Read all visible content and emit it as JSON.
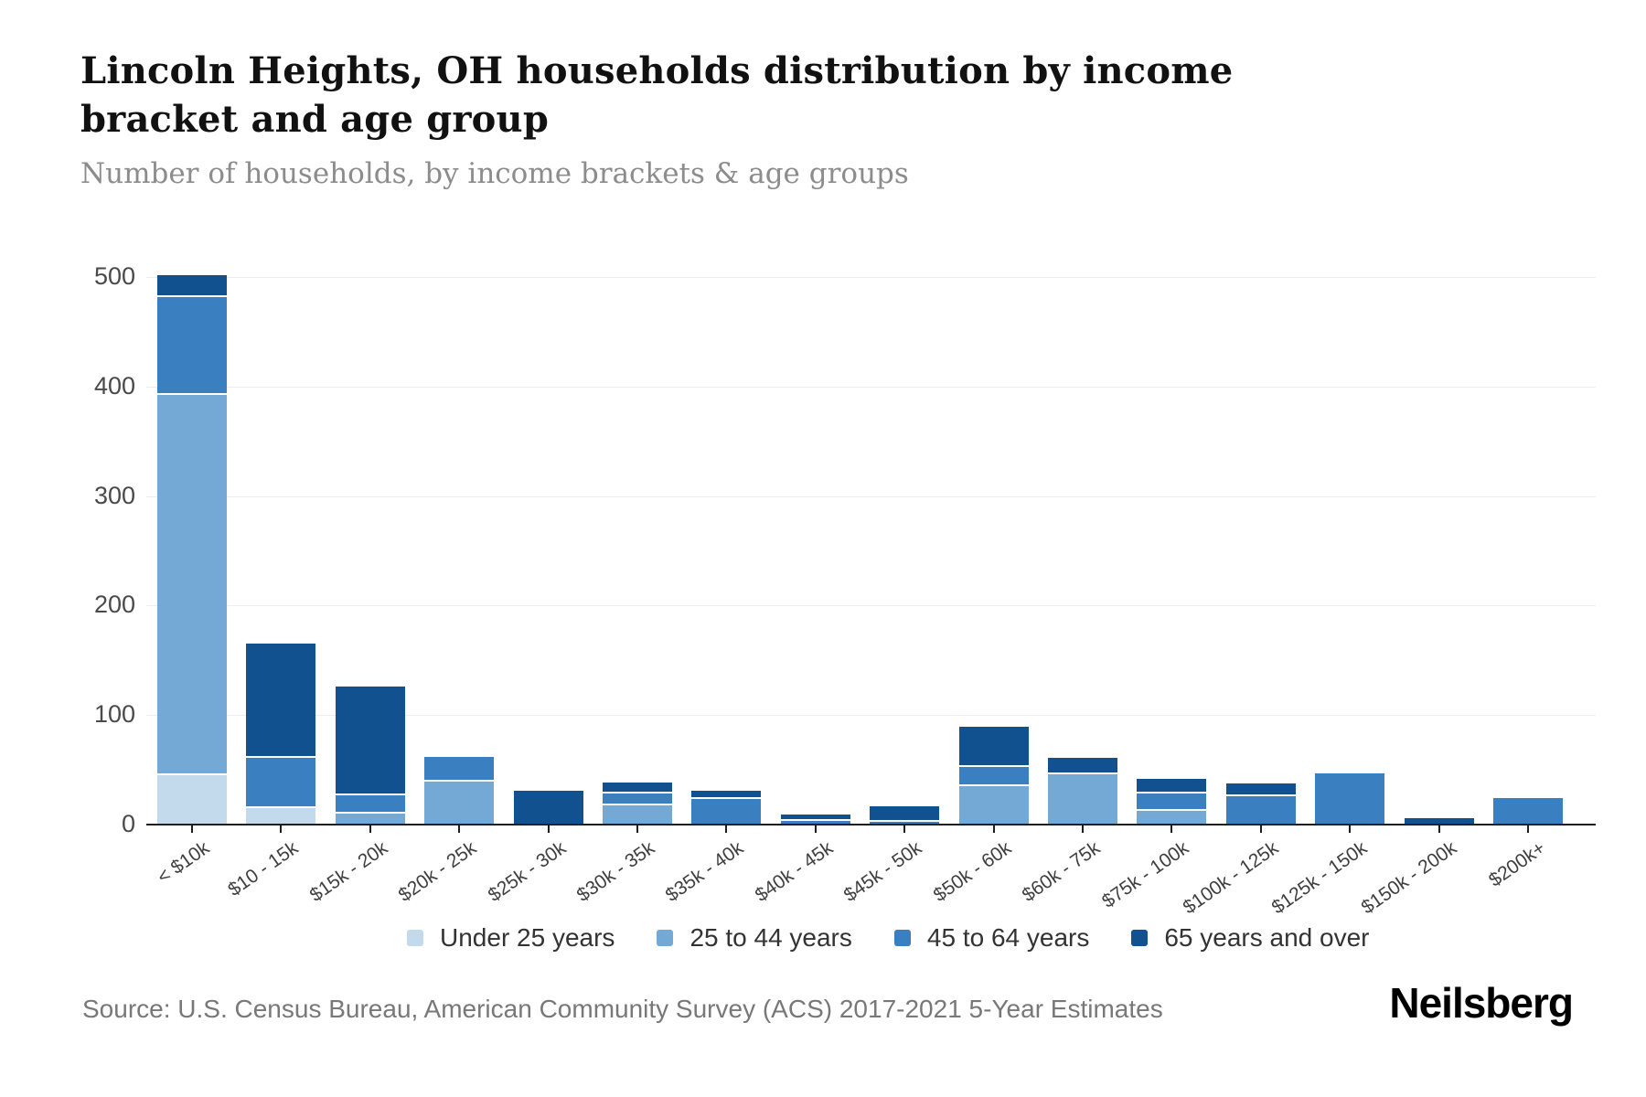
{
  "header": {
    "title": "Lincoln Heights, OH households distribution by income bracket and age group",
    "subtitle": "Number of households, by income brackets & age groups"
  },
  "footer": {
    "source": "Source: U.S. Census Bureau, American Community Survey (ACS) 2017-2021 5-Year Estimates",
    "brand": "Neilsberg"
  },
  "chart_data": {
    "type": "bar",
    "stacked": true,
    "title": "Lincoln Heights, OH households distribution by income bracket and age group",
    "xlabel": "",
    "ylabel": "Number of households",
    "ylim": [
      0,
      500
    ],
    "yticks": [
      0,
      100,
      200,
      300,
      400,
      500
    ],
    "grid": true,
    "legend_position": "bottom",
    "categories": [
      "< $10k",
      "$10 - 15k",
      "$15k - 20k",
      "$20k - 25k",
      "$25k - 30k",
      "$30k - 35k",
      "$35k - 40k",
      "$40k - 45k",
      "$45k - 50k",
      "$50k - 60k",
      "$60k - 75k",
      "$75k - 100k",
      "$100k - 125k",
      "$125k - 150k",
      "$150k - 200k",
      "$200k+"
    ],
    "series": [
      {
        "name": "Under 25 years",
        "color": "#c3d9ec",
        "values": [
          47,
          17,
          0,
          0,
          0,
          0,
          0,
          0,
          0,
          0,
          0,
          0,
          0,
          0,
          0,
          0
        ]
      },
      {
        "name": "25 to 44 years",
        "color": "#74a9d6",
        "values": [
          347,
          0,
          12,
          41,
          0,
          19,
          0,
          0,
          0,
          37,
          48,
          14,
          0,
          0,
          0,
          0
        ]
      },
      {
        "name": "45 to 64 years",
        "color": "#3a80c1",
        "values": [
          89,
          46,
          16,
          21,
          0,
          11,
          25,
          5,
          4,
          17,
          0,
          16,
          28,
          47,
          0,
          24
        ]
      },
      {
        "name": "65 years and over",
        "color": "#11518f",
        "values": [
          19,
          102,
          98,
          0,
          31,
          8,
          6,
          4,
          13,
          35,
          13,
          12,
          10,
          0,
          6,
          0
        ]
      }
    ]
  }
}
